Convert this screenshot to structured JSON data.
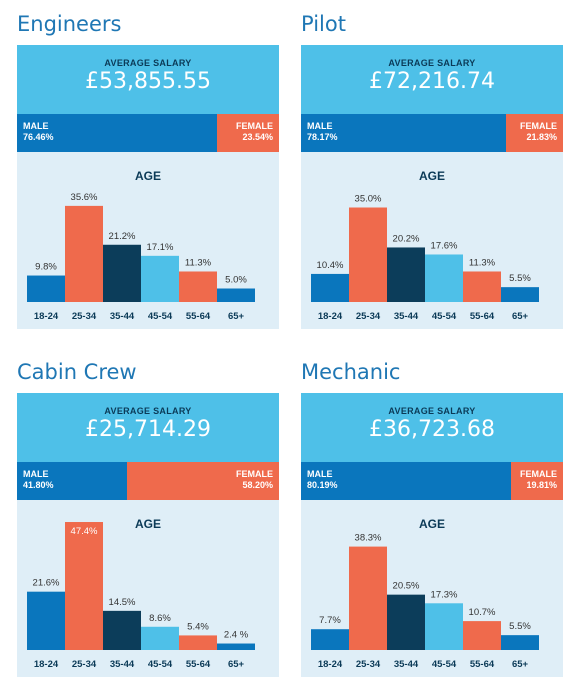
{
  "labels": {
    "average_salary": "AVERAGE SALARY",
    "male": "MALE",
    "female": "FEMALE",
    "age": "AGE"
  },
  "colors": {
    "title": "#1f77b4",
    "salary_bg": "#4ec0e8",
    "male": "#0a76bd",
    "female": "#ef6a4c",
    "card_bg": "#dfeef7",
    "bars": [
      "#0a76bd",
      "#ef6a4c",
      "#0c3d5a",
      "#4ec0e8",
      "#ef6a4c",
      "#0a76bd"
    ]
  },
  "panels": [
    {
      "title": "Engineers",
      "salary": "£53,855.55",
      "male": "76.46%",
      "female": "23.54%"
    },
    {
      "title": "Pilot",
      "salary": "£72,216.74",
      "male": "78.17%",
      "female": "21.83%"
    },
    {
      "title": "Cabin Crew",
      "salary": "£25,714.29",
      "male": "41.80%",
      "female": "58.20%"
    },
    {
      "title": "Mechanic",
      "salary": "£36,723.68",
      "male": "80.19%",
      "female": "19.81%"
    }
  ],
  "chart_data": [
    {
      "type": "bar",
      "title": "AGE",
      "categories": [
        "18-24",
        "25-34",
        "35-44",
        "45-54",
        "55-64",
        "65+"
      ],
      "values": [
        9.8,
        35.6,
        21.2,
        17.1,
        11.3,
        5.0
      ],
      "value_labels": [
        "9.8%",
        "35.6%",
        "21.2%",
        "17.1%",
        "11.3%",
        "5.0%"
      ]
    },
    {
      "type": "bar",
      "title": "AGE",
      "categories": [
        "18-24",
        "25-34",
        "35-44",
        "45-54",
        "55-64",
        "65+"
      ],
      "values": [
        10.4,
        35.0,
        20.2,
        17.6,
        11.3,
        5.5
      ],
      "value_labels": [
        "10.4%",
        "35.0%",
        "20.2%",
        "17.6%",
        "11.3%",
        "5.5%"
      ]
    },
    {
      "type": "bar",
      "title": "AGE",
      "categories": [
        "18-24",
        "25-34",
        "35-44",
        "45-54",
        "55-64",
        "65+"
      ],
      "values": [
        21.6,
        47.4,
        14.5,
        8.6,
        5.4,
        2.4
      ],
      "value_labels": [
        "21.6%",
        "47.4%",
        "14.5%",
        "8.6%",
        "5.4%",
        "2.4 %"
      ]
    },
    {
      "type": "bar",
      "title": "AGE",
      "categories": [
        "18-24",
        "25-34",
        "35-44",
        "45-54",
        "55-64",
        "65+"
      ],
      "values": [
        7.7,
        38.3,
        20.5,
        17.3,
        10.7,
        5.5
      ],
      "value_labels": [
        "7.7%",
        "38.3%",
        "20.5%",
        "17.3%",
        "10.7%",
        "5.5%"
      ]
    }
  ]
}
